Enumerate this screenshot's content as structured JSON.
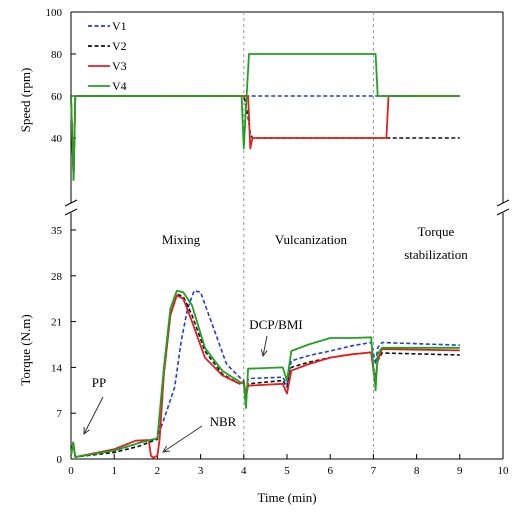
{
  "chart_data": [
    {
      "type": "line",
      "panel": "speed",
      "ylabel": "Speed (rpm)",
      "ylim": [
        20,
        100
      ],
      "yticks": [
        "40",
        "60",
        "80",
        "100"
      ],
      "xlim": [
        0,
        10
      ],
      "grid": false,
      "legend_placement": "top-left",
      "series": [
        {
          "name": "V1",
          "color": "#1f3fd0",
          "style": "dashed",
          "x": [
            0,
            0.03,
            0.06,
            0.1,
            4.0,
            9.0
          ],
          "y": [
            60,
            40,
            20,
            60,
            60,
            60
          ]
        },
        {
          "name": "V2",
          "color": "#111111",
          "style": "dashed",
          "x": [
            0,
            0.03,
            0.06,
            0.1,
            4.0,
            4.1,
            4.15,
            4.2,
            7.3,
            7.35,
            9.0
          ],
          "y": [
            60,
            40,
            20,
            60,
            60,
            50,
            42,
            40,
            40,
            40,
            40
          ]
        },
        {
          "name": "V3",
          "color": "#e02020",
          "style": "solid",
          "x": [
            0,
            0.03,
            0.06,
            0.1,
            4.0,
            4.1,
            4.15,
            4.2,
            7.3,
            7.35,
            9.0
          ],
          "y": [
            60,
            40,
            20,
            60,
            60,
            60,
            35,
            40,
            40,
            60,
            60
          ]
        },
        {
          "name": "V4",
          "color": "#22a022",
          "style": "solid",
          "x": [
            0,
            0.03,
            0.06,
            0.1,
            3.95,
            4.0,
            4.05,
            4.12,
            4.18,
            7.0,
            7.05,
            7.1,
            9.0
          ],
          "y": [
            60,
            40,
            20,
            60,
            60,
            35,
            55,
            80,
            80,
            80,
            80,
            60,
            60
          ]
        }
      ]
    },
    {
      "type": "line",
      "panel": "torque",
      "xlabel": "Time (min)",
      "ylabel": "Torque (N.m)",
      "xlim": [
        0,
        10
      ],
      "ylim": [
        0,
        35
      ],
      "xticks": [
        "0",
        "1",
        "2",
        "3",
        "4",
        "5",
        "6",
        "7",
        "8",
        "9",
        "10"
      ],
      "yticks": [
        "0",
        "7",
        "14",
        "21",
        "28",
        "35"
      ],
      "grid": false,
      "phase_labels": [
        "Mixing",
        "Vulcanization",
        "Torque",
        "stabilization"
      ],
      "phase_boundaries": [
        4,
        7
      ],
      "annotations": [
        {
          "text": "PP",
          "x": 0.35,
          "y": 4.5
        },
        {
          "text": "NBR",
          "x": 2.0,
          "y": 3.0
        },
        {
          "text": "DCP/BMI",
          "x": 4.5,
          "y": 16.0
        }
      ],
      "series": [
        {
          "name": "V1",
          "color": "#1f3fd0",
          "style": "dashed",
          "x": [
            0,
            0.05,
            0.1,
            1.0,
            1.6,
            2.0,
            2.2,
            2.4,
            2.55,
            2.7,
            2.85,
            3.0,
            3.3,
            3.6,
            3.9,
            4.0,
            4.05,
            4.1,
            4.9,
            5.0,
            5.1,
            5.5,
            6.0,
            6.5,
            6.95,
            7.0,
            7.05,
            7.1,
            7.2,
            9.0
          ],
          "y": [
            0.5,
            2.5,
            0.3,
            1.2,
            2.5,
            3.2,
            7.0,
            11.0,
            18.0,
            23.0,
            25.7,
            25.5,
            20.0,
            14.5,
            12.5,
            12.0,
            9.5,
            12.3,
            12.5,
            11.5,
            15.0,
            15.8,
            16.5,
            17.3,
            17.8,
            16.2,
            14.5,
            17.0,
            17.8,
            17.4
          ]
        },
        {
          "name": "V2",
          "color": "#111111",
          "style": "dashed",
          "x": [
            0,
            0.05,
            0.1,
            1.0,
            1.6,
            1.9,
            2.0,
            2.15,
            2.3,
            2.45,
            2.6,
            2.8,
            3.1,
            3.5,
            3.9,
            4.0,
            4.05,
            4.1,
            4.9,
            5.0,
            5.1,
            5.5,
            6.0,
            6.5,
            6.95,
            7.0,
            7.05,
            7.1,
            7.2,
            9.0
          ],
          "y": [
            0.5,
            2.5,
            0.3,
            1.0,
            2.0,
            2.8,
            3.0,
            13.0,
            22.0,
            25.2,
            24.8,
            22.0,
            16.5,
            13.0,
            11.5,
            11.8,
            9.5,
            11.5,
            12.0,
            11.0,
            14.0,
            14.8,
            15.5,
            16.0,
            16.3,
            14.0,
            12.5,
            15.0,
            16.2,
            15.9
          ]
        },
        {
          "name": "V3",
          "color": "#e02020",
          "style": "solid",
          "x": [
            0,
            0.05,
            0.1,
            1.0,
            1.5,
            1.8,
            1.85,
            1.9,
            2.0,
            2.05,
            2.15,
            2.3,
            2.45,
            2.6,
            2.8,
            3.1,
            3.5,
            3.9,
            4.0,
            4.05,
            4.1,
            4.9,
            5.0,
            5.1,
            5.5,
            6.0,
            6.5,
            6.95,
            7.0,
            7.05,
            7.1,
            7.2,
            9.0
          ],
          "y": [
            0.5,
            2.5,
            0.3,
            1.5,
            2.8,
            2.9,
            0.5,
            0.2,
            0.5,
            3.0,
            13.0,
            22.0,
            25.0,
            24.5,
            21.0,
            15.5,
            12.8,
            11.5,
            11.8,
            9.5,
            11.2,
            11.5,
            10.0,
            13.5,
            14.5,
            15.5,
            16.0,
            16.3,
            13.5,
            12.0,
            15.0,
            16.8,
            16.6
          ]
        },
        {
          "name": "V4",
          "color": "#22a022",
          "style": "solid",
          "x": [
            0,
            0.05,
            0.1,
            1.0,
            1.6,
            1.9,
            2.0,
            2.15,
            2.3,
            2.45,
            2.6,
            2.8,
            3.1,
            3.5,
            3.9,
            4.0,
            4.05,
            4.1,
            4.9,
            5.0,
            5.1,
            5.5,
            6.0,
            6.5,
            6.95,
            7.0,
            7.05,
            7.1,
            7.2,
            9.0
          ],
          "y": [
            0.5,
            2.5,
            0.3,
            1.3,
            2.5,
            3.0,
            3.2,
            14.0,
            23.0,
            25.7,
            25.5,
            23.5,
            17.0,
            13.5,
            11.8,
            11.5,
            7.8,
            13.8,
            14.0,
            12.0,
            16.5,
            17.5,
            18.5,
            18.5,
            18.6,
            14.0,
            10.5,
            16.0,
            17.0,
            17.0
          ]
        }
      ]
    }
  ]
}
